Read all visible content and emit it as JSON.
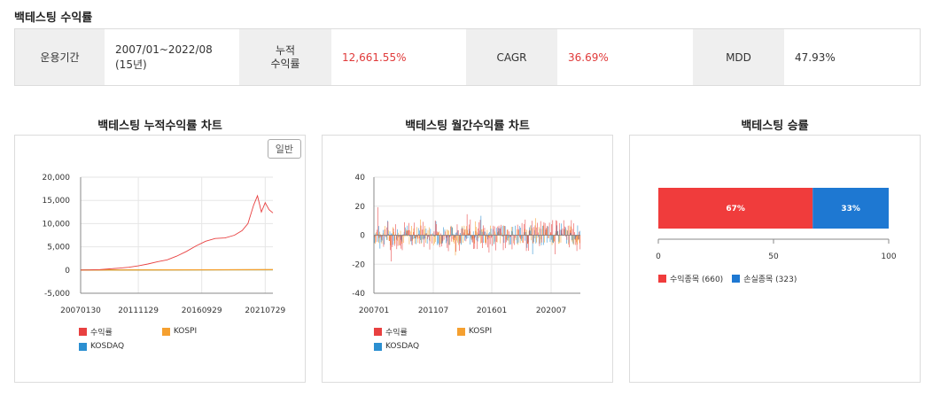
{
  "header": {
    "title": "백테스팅 수익률"
  },
  "summary": {
    "period_label": "운용기간",
    "period_value": "2007/01~2022/08 (15년)",
    "cum_label": "누적 수익률",
    "cum_value": "12,661.55%",
    "cagr_label": "CAGR",
    "cagr_value": "36.69%",
    "mdd_label": "MDD",
    "mdd_value": "47.93%"
  },
  "cum_chart": {
    "title": "백테스팅 누적수익률 차트",
    "button": "일반"
  },
  "monthly_chart": {
    "title": "백테스팅 월간수익률 차트"
  },
  "win_chart": {
    "title": "백테스팅 승률"
  },
  "colors": {
    "profit": "#e84040",
    "kospi": "#f5a030",
    "kosdaq": "#2b8fd1",
    "loss": "#1e78d2",
    "accent_red": "#e03a3a"
  },
  "chart_data": [
    {
      "type": "line",
      "x_ticks": [
        "20070130",
        "20111129",
        "20160929",
        "20210729"
      ],
      "y_ticks": [
        "20,000",
        "15,000",
        "10,000",
        "5,000",
        "0",
        "-5,000"
      ],
      "ylim": [
        -5000,
        20000
      ],
      "series": [
        {
          "name": "수익률",
          "points": [
            [
              0,
              0
            ],
            [
              0.05,
              20
            ],
            [
              0.1,
              100
            ],
            [
              0.15,
              250
            ],
            [
              0.2,
              400
            ],
            [
              0.25,
              600
            ],
            [
              0.3,
              900
            ],
            [
              0.35,
              1300
            ],
            [
              0.4,
              1800
            ],
            [
              0.45,
              2200
            ],
            [
              0.5,
              3000
            ],
            [
              0.55,
              4000
            ],
            [
              0.6,
              5200
            ],
            [
              0.65,
              6200
            ],
            [
              0.7,
              6800
            ],
            [
              0.75,
              6900
            ],
            [
              0.8,
              7500
            ],
            [
              0.84,
              8500
            ],
            [
              0.87,
              10000
            ],
            [
              0.9,
              14000
            ],
            [
              0.92,
              16000
            ],
            [
              0.94,
              12500
            ],
            [
              0.96,
              14500
            ],
            [
              0.98,
              13000
            ],
            [
              1.0,
              12300
            ]
          ]
        },
        {
          "name": "KOSPI",
          "points": [
            [
              0,
              0
            ],
            [
              1,
              80
            ]
          ]
        },
        {
          "name": "KOSDAQ",
          "points": [
            [
              0,
              0
            ],
            [
              1,
              60
            ]
          ]
        }
      ]
    },
    {
      "type": "bar",
      "x_ticks": [
        "200701",
        "201107",
        "201601",
        "202007"
      ],
      "y_ticks": [
        "40",
        "20",
        "0",
        "-20",
        "-40"
      ],
      "ylim": [
        -40,
        40
      ],
      "series": [
        {
          "name": "수익률"
        },
        {
          "name": "KOSPI"
        },
        {
          "name": "KOSDAQ"
        }
      ]
    },
    {
      "type": "bar",
      "x_ticks": [
        "0",
        "50",
        "100"
      ],
      "values": [
        67,
        33
      ],
      "value_labels": [
        "67%",
        "33%"
      ],
      "legend": [
        "수익종목 (660)",
        "손실종목 (323)"
      ]
    }
  ]
}
